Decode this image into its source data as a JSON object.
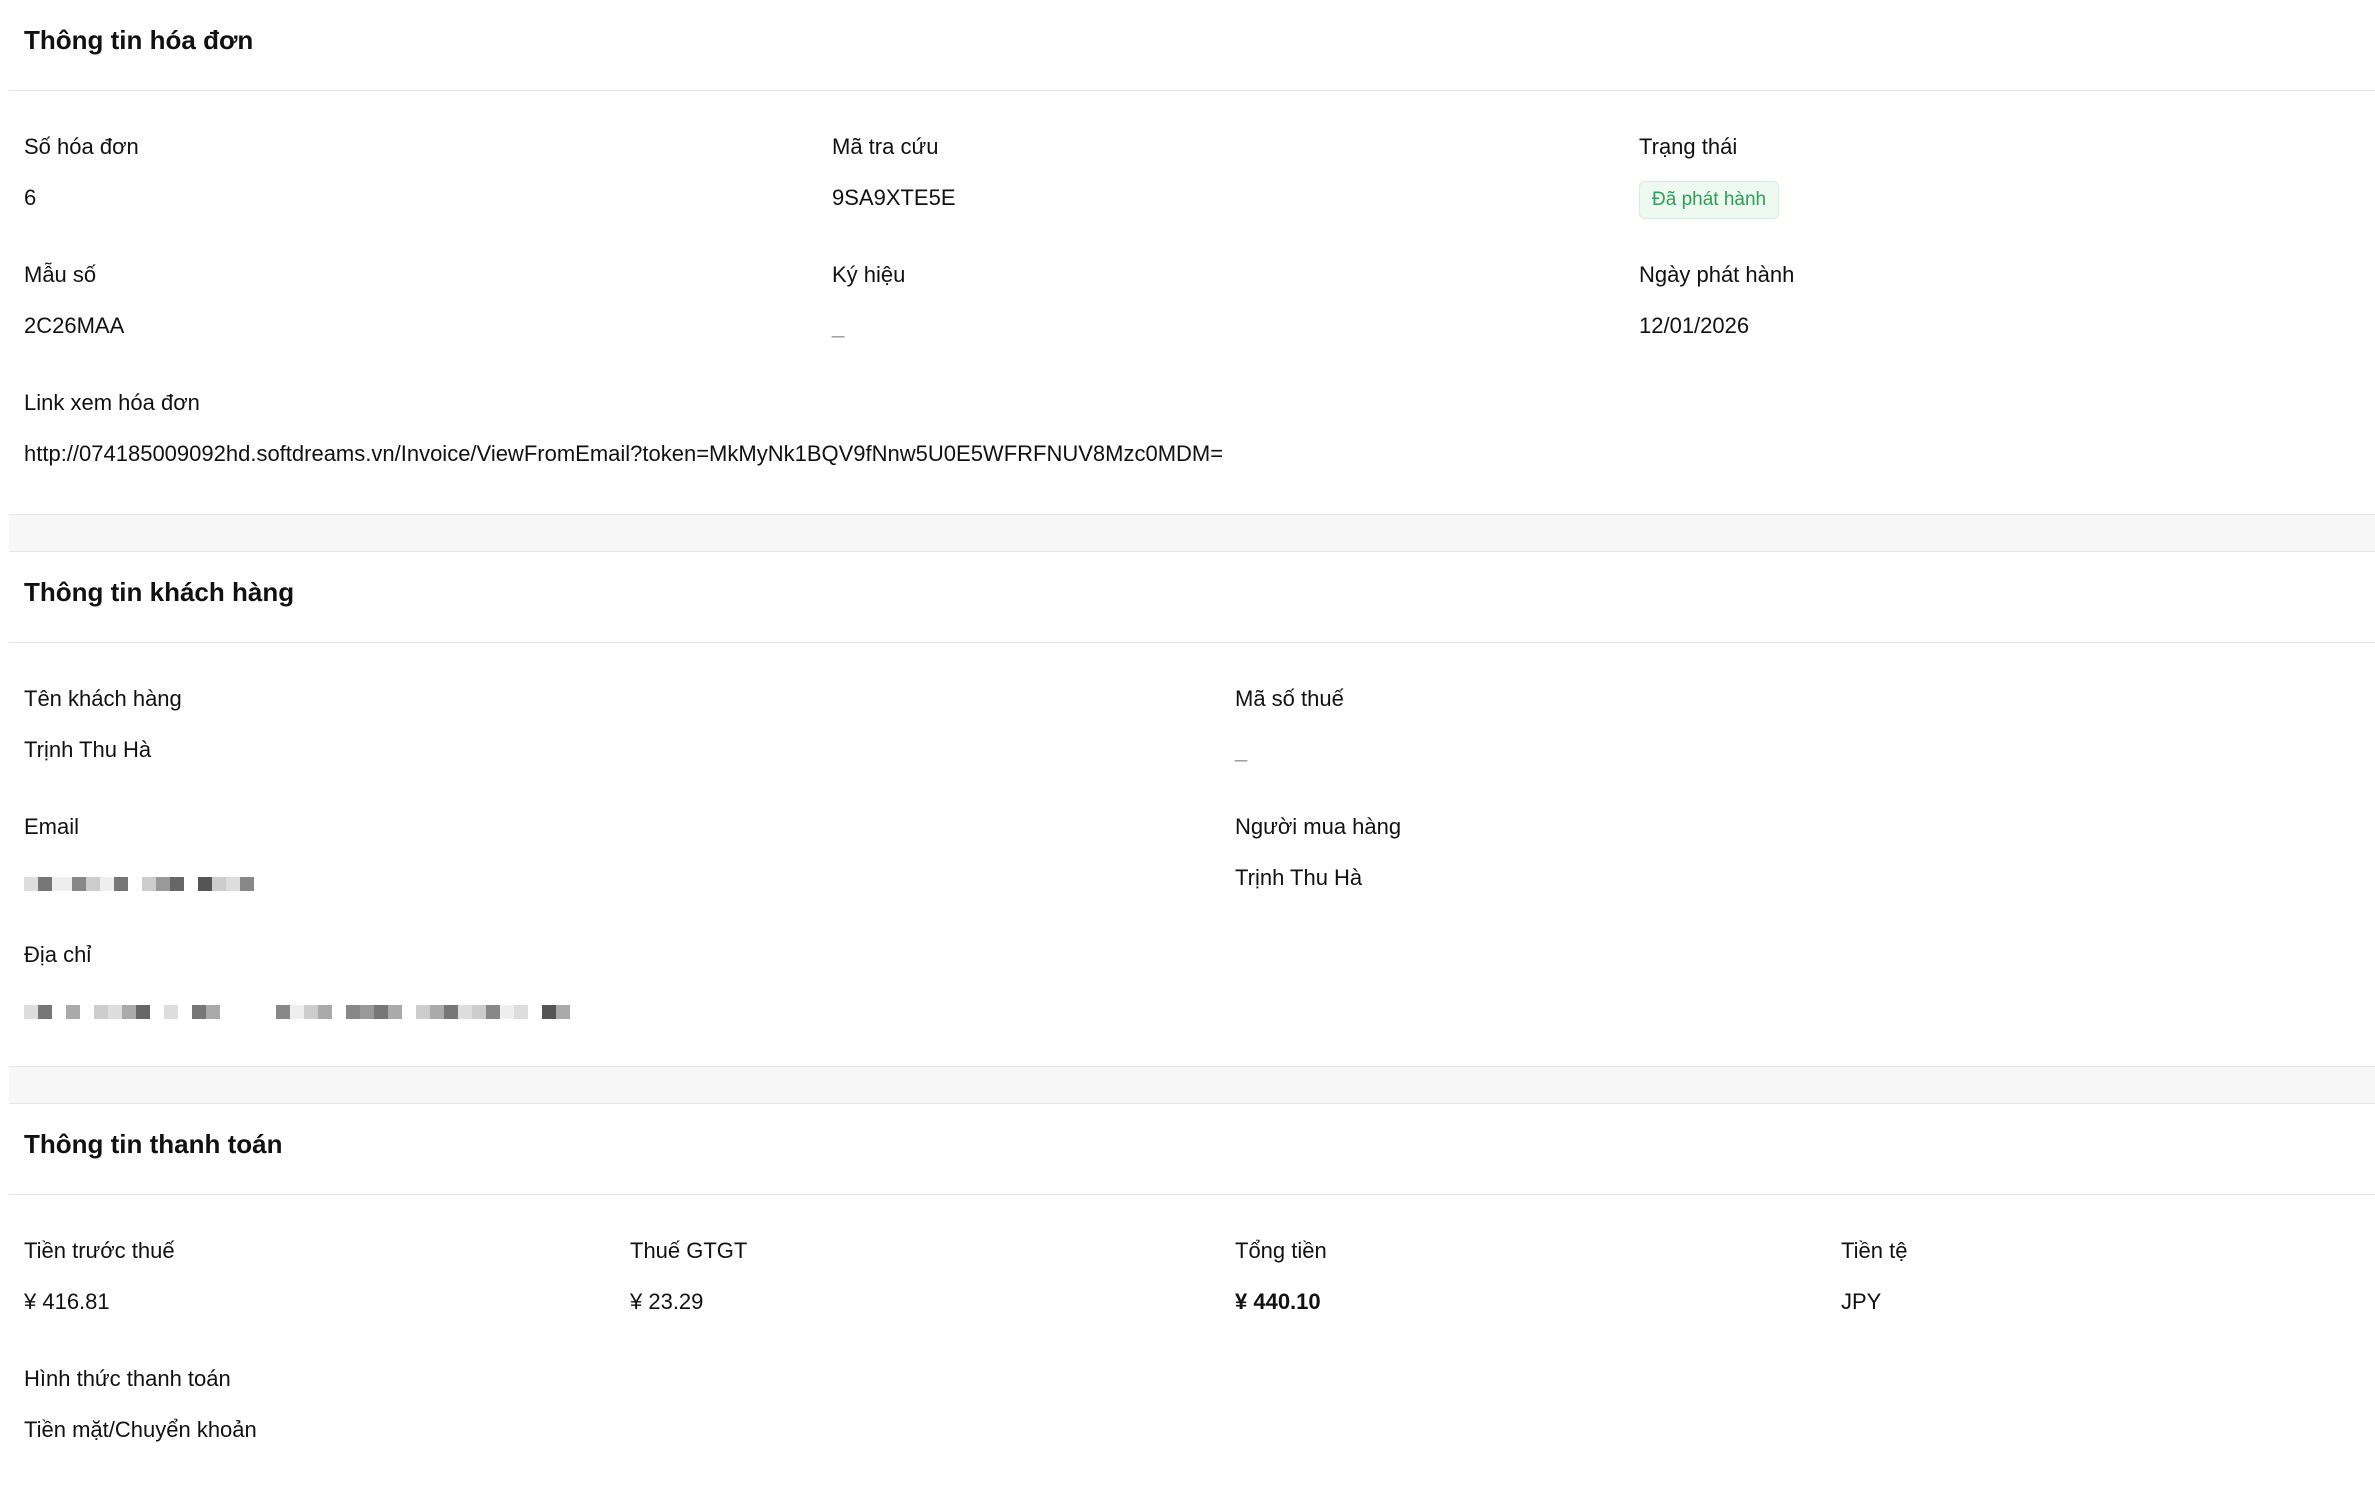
{
  "invoice": {
    "title": "Thông tin hóa đơn",
    "number_label": "Số hóa đơn",
    "number": "6",
    "lookup_label": "Mã tra cứu",
    "lookup": "9SA9XTE5E",
    "status_label": "Trạng thái",
    "status": "Đã phát hành",
    "status_color": "#2e9e52",
    "template_label": "Mẫu số",
    "template": "2C26MAA",
    "symbol_label": "Ký hiệu",
    "symbol": "_",
    "issue_date_label": "Ngày phát hành",
    "issue_date": "12/01/2026",
    "link_label": "Link xem hóa đơn",
    "link": "http://074185009092hd.softdreams.vn/Invoice/ViewFromEmail?token=MkMyNk1BQV9fNnw5U0E5WFRFNUV8Mzc0MDM="
  },
  "customer": {
    "title": "Thông tin khách hàng",
    "name_label": "Tên khách hàng",
    "name": "Trịnh Thu Hà",
    "tax_label": "Mã số thuế",
    "tax": "_",
    "email_label": "Email",
    "buyer_label": "Người mua hàng",
    "buyer": "Trịnh Thu Hà",
    "address_label": "Địa chỉ"
  },
  "payment": {
    "title": "Thông tin thanh toán",
    "subtotal_label": "Tiền trước thuế",
    "subtotal": "¥ 416.81",
    "vat_label": "Thuế GTGT",
    "vat": "¥ 23.29",
    "total_label": "Tổng tiền",
    "total": "¥ 440.10",
    "currency_label": "Tiền tệ",
    "currency": "JPY",
    "method_label": "Hình thức thanh toán",
    "method": "Tiền mặt/Chuyển khoản"
  }
}
